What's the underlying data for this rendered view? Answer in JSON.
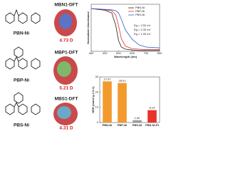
{
  "molecules": [
    {
      "name": "PBN-Ni",
      "model": "MBN1-DFT",
      "dipole": "4.73 D"
    },
    {
      "name": "PBP-Ni",
      "model": "MBP1-DFT",
      "dipole": "5.21 D"
    },
    {
      "name": "PBS-Ni",
      "model": "MBS1-DFT",
      "dipole": "4.31 D"
    }
  ],
  "chart_data": [
    {
      "type": "line",
      "xlabel": "Wavelength (nm)",
      "ylabel": "Normalized Absorbance",
      "legend": "top-right",
      "x": [
        300,
        350,
        400,
        450,
        480,
        500,
        520,
        550,
        600,
        650,
        700,
        800
      ],
      "xlim": [
        300,
        800
      ],
      "xticks": [
        300,
        400,
        500,
        600,
        700,
        800
      ],
      "ylim": [
        0,
        1.1
      ],
      "series": [
        {
          "name": "PBN-Ni",
          "color": "#222222",
          "values": [
            1,
            0.98,
            0.96,
            0.9,
            0.6,
            0.25,
            0.1,
            0.05,
            0.03,
            0.02,
            0.02,
            0.02
          ]
        },
        {
          "name": "PBP-Ni",
          "color": "#e8322b",
          "values": [
            1,
            0.99,
            0.97,
            0.95,
            0.85,
            0.6,
            0.3,
            0.12,
            0.06,
            0.05,
            0.04,
            0.04
          ]
        },
        {
          "name": "PBS-Ni",
          "color": "#2a5cc9",
          "values": [
            1,
            0.99,
            0.98,
            0.97,
            0.95,
            0.9,
            0.75,
            0.5,
            0.28,
            0.15,
            0.1,
            0.08
          ]
        }
      ],
      "annotations": [
        {
          "text": "Eg = 2.52 eV",
          "color": "#2a5cc9"
        },
        {
          "text": "Eg = 2.33 eV",
          "color": "#f0a020"
        },
        {
          "text": "Eg = 1.93 eV",
          "color": "#e8322b"
        }
      ]
    },
    {
      "type": "bar",
      "ylabel": "HER (mmol g-1 h-1)",
      "categories": [
        "PBN-Ni",
        "PBP-Ni",
        "PBS-Ni",
        "PBS-Ni-Pt"
      ],
      "values": [
        27.07,
        26.01,
        1.52,
        8.14
      ],
      "value_labels": [
        "27.07",
        "26.01",
        "1.52",
        "8.14"
      ],
      "colors": [
        "#f29a2e",
        "#f29a2e",
        "#9a9a9a",
        "#e8322b"
      ],
      "ylim": [
        0,
        30
      ],
      "yticks": [
        0,
        10,
        20,
        30
      ]
    }
  ]
}
